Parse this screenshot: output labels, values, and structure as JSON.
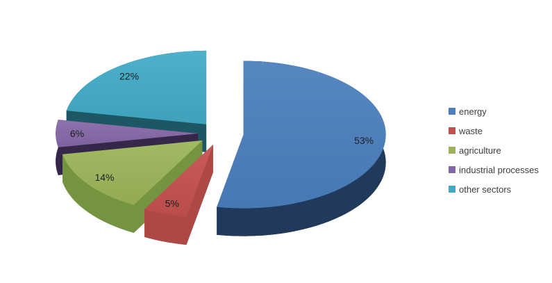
{
  "chart_data": {
    "type": "pie",
    "style": "3d-exploded-pie",
    "direction": "clockwise",
    "start_angle_deg": 0,
    "background_color": "#ffffff",
    "data_label_color": "#1e1e1e",
    "legend_text_color": "#3d3d3d",
    "legend_position": "right",
    "slices": [
      {
        "label": "energy",
        "value": 53,
        "data_label": "53%",
        "color": "#4a7ebc",
        "side_color": "#21395a"
      },
      {
        "label": "waste",
        "value": 5,
        "data_label": "5%",
        "color": "#c4504e",
        "side_color": "#ad4845"
      },
      {
        "label": "agriculture",
        "value": 14,
        "data_label": "14%",
        "color": "#9ab457",
        "side_color": "#75943f"
      },
      {
        "label": "industrial processes",
        "value": 6,
        "data_label": "6%",
        "color": "#8467a6",
        "side_color": "#352749"
      },
      {
        "label": "other sectors",
        "value": 22,
        "data_label": "22%",
        "color": "#41aac6",
        "side_color": "#1d5764"
      }
    ],
    "legend_entries": [
      "energy",
      "waste",
      "agriculture",
      "industrial processes",
      "other sectors"
    ]
  }
}
